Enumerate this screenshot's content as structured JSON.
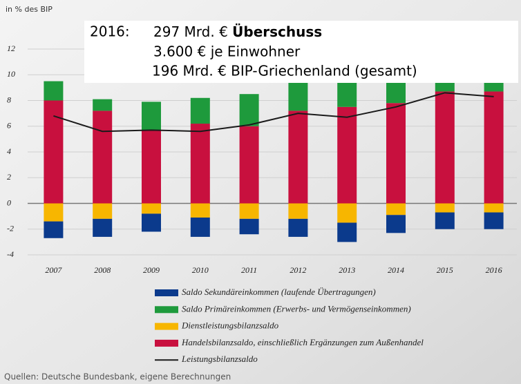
{
  "chart_data": {
    "type": "bar",
    "stacked": true,
    "unit_label": "in % des BIP",
    "source": "Quellen:  Deutsche Bundesbank, eigene Berechnungen",
    "annotation": {
      "year": "2016:",
      "amount": "297 Mrd. €",
      "emphasis": "Überschuss",
      "lines": [
        "3.600 € je Einwohner",
        "196 Mrd. € BIP-Griechenland (gesamt)"
      ]
    },
    "categories": [
      "2007",
      "2008",
      "2009",
      "2010",
      "2011",
      "2012",
      "2013",
      "2014",
      "2015",
      "2016"
    ],
    "series": [
      {
        "name": "Saldo Sekundäreinkommen (laufende Übertragungen)",
        "color": "#0b3a8c",
        "values": [
          -1.3,
          -1.4,
          -1.4,
          -1.5,
          -1.2,
          -1.4,
          -1.5,
          -1.4,
          -1.3,
          -1.3
        ]
      },
      {
        "name": "Saldo Primäreinkommen (Erwerbs- und Vermögenseinkommen)",
        "color": "#1e9a3c",
        "values": [
          1.5,
          0.9,
          2.2,
          2.0,
          2.5,
          2.3,
          2.0,
          1.7,
          1.3,
          0.9
        ]
      },
      {
        "name": "Dienstleistungsbilanzsaldo",
        "color": "#f7b600",
        "values": [
          -1.4,
          -1.2,
          -0.8,
          -1.1,
          -1.2,
          -1.2,
          -1.5,
          -0.9,
          -0.7,
          -0.7
        ]
      },
      {
        "name": "Handelsbilanzsaldo, einschließlich Ergänzungen zum Außenhandel",
        "color": "#c8103e",
        "values": [
          8.0,
          7.2,
          5.7,
          6.2,
          6.0,
          7.2,
          7.5,
          7.8,
          8.7,
          8.7
        ]
      },
      {
        "name": "Leistungsbilanzsaldo",
        "type": "line",
        "color": "#1a1a1a",
        "values": [
          6.8,
          5.6,
          5.7,
          5.6,
          6.1,
          7.0,
          6.7,
          7.5,
          8.6,
          8.3
        ]
      }
    ],
    "ylim": [
      -4,
      12
    ],
    "yticks": [
      -4,
      -2,
      0,
      2,
      4,
      6,
      8,
      10,
      12
    ],
    "grid": true
  }
}
